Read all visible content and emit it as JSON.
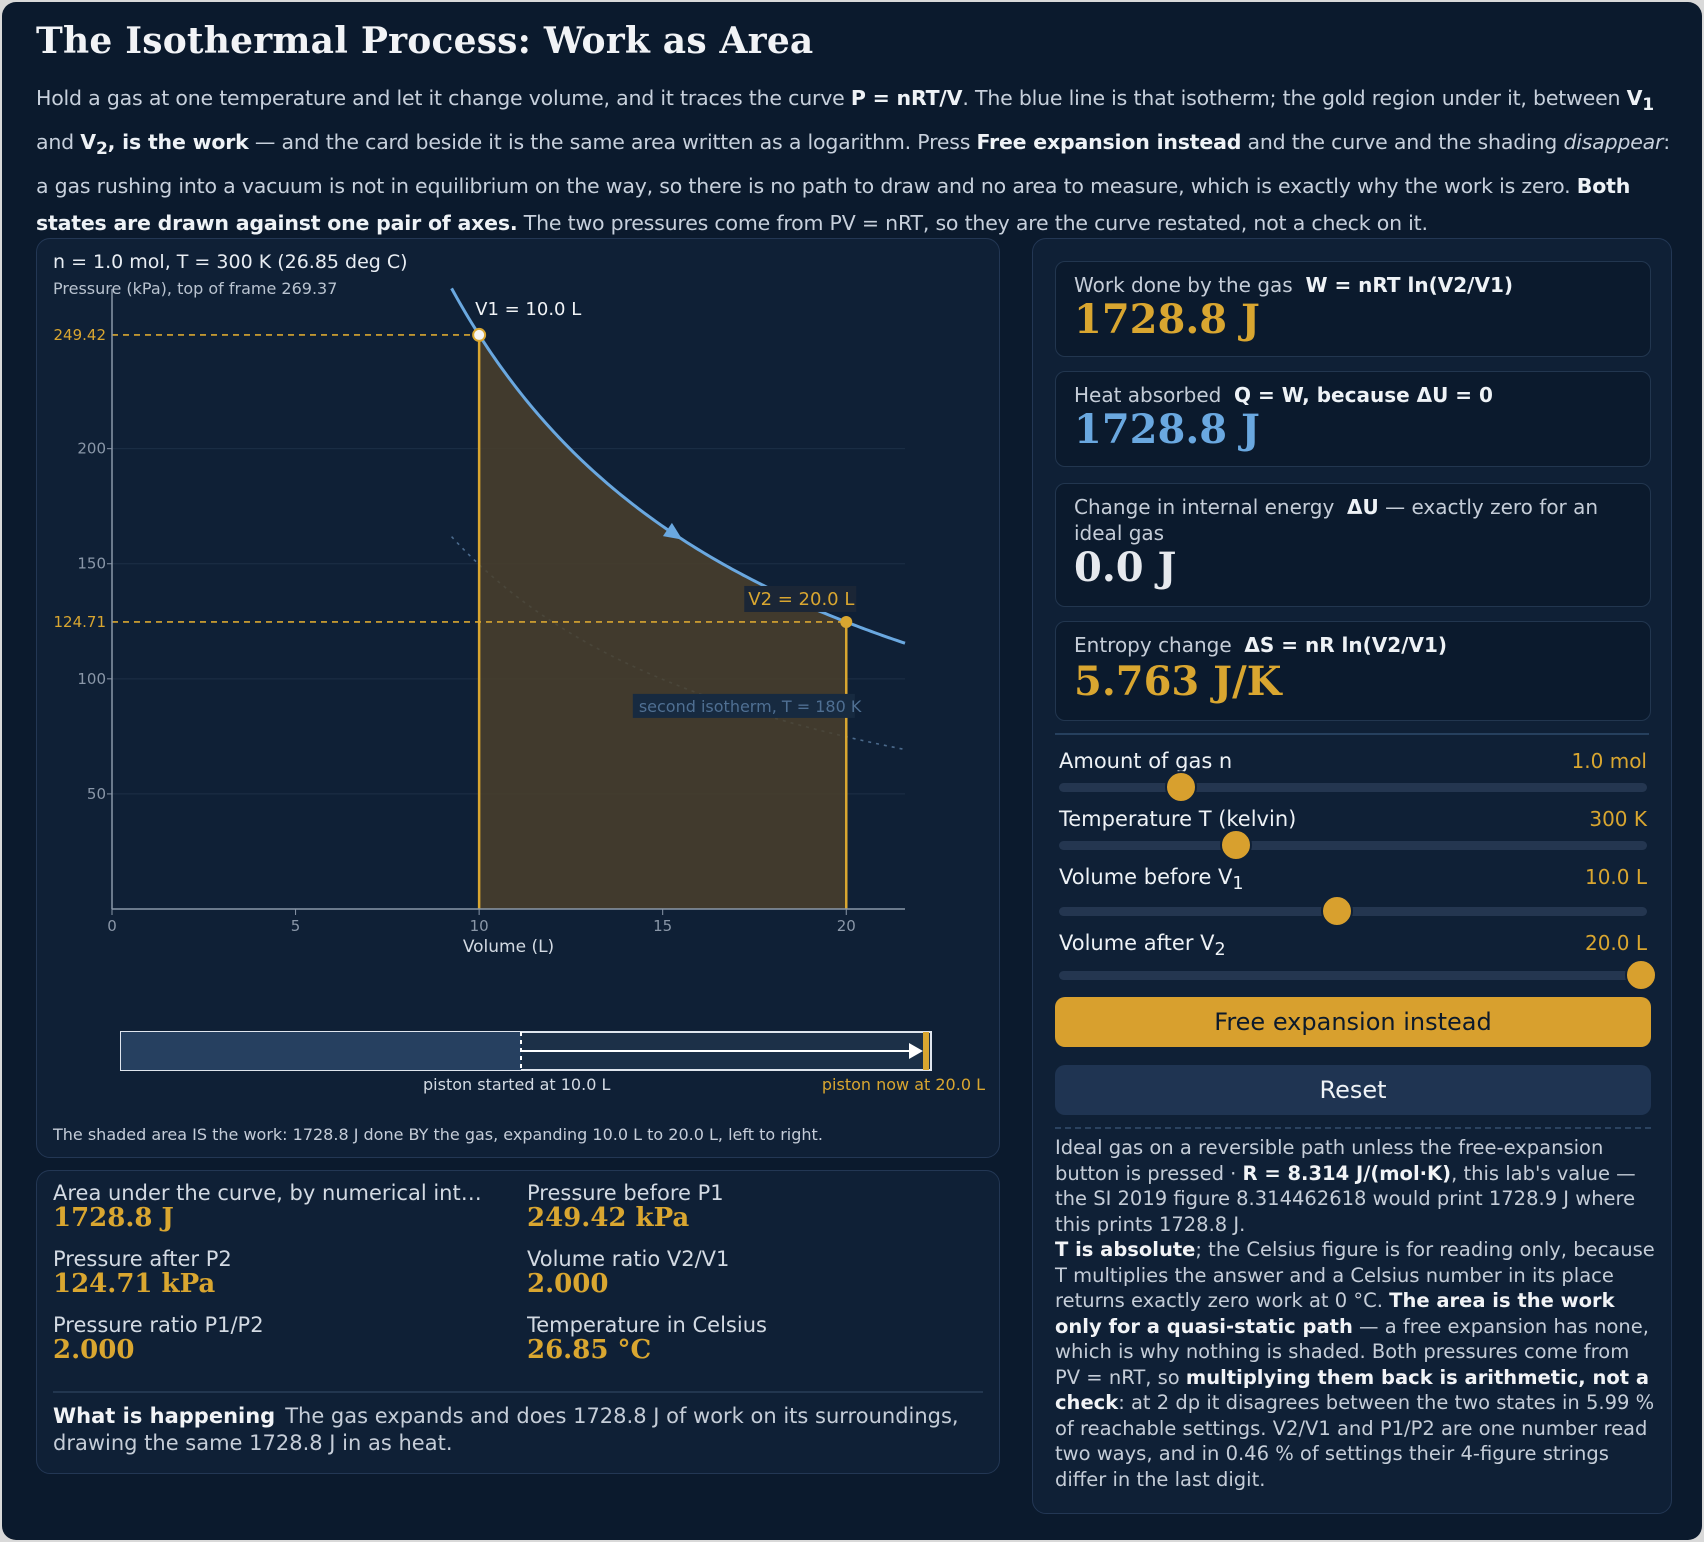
{
  "title": "The Isothermal Process: Work as Area",
  "intro": {
    "p1": "Hold a gas at one temperature and let it change volume, and it traces the curve ",
    "b1": "P = nRT/V",
    "p2": ". The blue line is that isotherm; the gold region under it, between ",
    "v1": "V",
    "v1sub": "1",
    "p3": " and ",
    "v2": "V",
    "v2sub": "2",
    "b2": ", is the work",
    "p4": " — and the card beside it is the same area written as a logarithm. Press ",
    "b3": "Free expansion instead",
    "p5": " and the curve and the shading ",
    "i1": "disappear",
    "p6": ": a gas rushing into a vacuum is not in equilibrium on the way, so there is no path to draw and no area to measure, which is exactly why the work is zero. ",
    "b4": "Both states are drawn against one pair of axes.",
    "p7": " The two pressures come from PV = nRT, so they are the curve restated, not a check on it."
  },
  "plot": {
    "header_line1": "n = 1.0 mol, T = 300 K (26.85 deg C)",
    "header_line2": "Pressure (kPa), top of frame 269.37",
    "xlabel": "Volume (L)",
    "x_ticks": [
      "0",
      "5",
      "10",
      "15",
      "20"
    ],
    "y_ticks": [
      "50",
      "100",
      "150",
      "200"
    ],
    "p1_label": "249.42",
    "p2_label": "124.71",
    "v1_label": "V1 = 10.0 L",
    "v2_label": "V2 = 20.0 L",
    "second_isotherm_label": "second isotherm, T = 180 K",
    "piston_start_label": "piston started at 10.0 L",
    "piston_now_label": "piston now at 20.0 L",
    "caption": "The shaded area IS the work: 1728.8 J done BY the gas, expanding 10.0 L to 20.0 L, left to right."
  },
  "chart_data": {
    "type": "line",
    "ylabel": "Pressure (kPa)",
    "xlabel": "Volume (L)",
    "xlim": [
      0,
      21.6
    ],
    "ylim": [
      0,
      269.37
    ],
    "series": [
      {
        "name": "isotherm",
        "T": 300,
        "n": 1.0,
        "function": "P = nRT/V",
        "v_range": [
          9.25,
          21.6
        ]
      },
      {
        "name": "second isotherm, T = 180 K",
        "T": 180,
        "n": 1.0,
        "function": "P = nRT/V",
        "v_range": [
          9.25,
          21.6
        ]
      }
    ],
    "points": [
      {
        "label": "V1 = 10.0 L",
        "x": 10.0,
        "y": 249.42
      },
      {
        "label": "V2 = 20.0 L",
        "x": 20.0,
        "y": 124.71
      }
    ],
    "shaded_region": {
      "x_from": 10.0,
      "x_to": 20.0,
      "meaning": "work"
    },
    "grid": true
  },
  "cards": [
    {
      "label": "Work done by the gas",
      "formula": "W = nRT ln(V2/V1)",
      "value": "1728.8 J",
      "color": "#d9a630"
    },
    {
      "label": "Heat absorbed",
      "formula": "Q = W, because ΔU = 0",
      "value": "1728.8 J",
      "color": "#6aa8e0"
    },
    {
      "label": "Change in internal energy",
      "formula": "ΔU",
      "tail": " — exactly zero for an ideal gas",
      "value": "0.0 J",
      "color": "#e6e9ee"
    },
    {
      "label": "Entropy change",
      "formula": "ΔS = nR ln(V2/V1)",
      "value": "5.763 J/K",
      "color": "#d9a630"
    }
  ],
  "sliders": [
    {
      "label": "Amount of gas n",
      "value": "1.0 mol",
      "fraction": 0.2
    },
    {
      "label": "Temperature T (kelvin)",
      "value": "300 K",
      "fraction": 0.3
    },
    {
      "label": "Volume before V",
      "sub": "1",
      "value": "10.0 L",
      "fraction": 0.47
    },
    {
      "label": "Volume after V",
      "sub": "2",
      "value": "20.0 L",
      "fraction": 0.97
    }
  ],
  "buttons": {
    "free": "Free expansion instead",
    "reset": "Reset"
  },
  "notes": {
    "a1": "Ideal gas on a reversible path unless the free-expansion button is pressed · ",
    "a2": "R = 8.314 J/(mol·K)",
    "a3": ", this lab's value — the SI 2019 figure 8.314462618 would print 1728.9 J where this prints 1728.8 J.",
    "b1": "T is absolute",
    "b2": "; the Celsius figure is for reading only, because T multiplies the answer and a Celsius number in its place returns exactly zero work at 0 °C. ",
    "b3": "The area is the work only for a quasi-static path",
    "b4": " — a free expansion has none, which is why nothing is shaded. Both pressures come from PV = nRT, so ",
    "b5": "multiplying them back is arithmetic, not a check",
    "b6": ": at 2 dp it disagrees between the two states in 5.99 % of reachable settings. V2/V1 and P1/P2 are one number read two ways, and in 0.46 % of settings their 4-figure strings differ in the last digit."
  },
  "stats": [
    {
      "label": "Area under the curve, by numerical integ…",
      "value": "1728.8 J"
    },
    {
      "label": "Pressure before P1",
      "value": "249.42 kPa"
    },
    {
      "label": "Pressure after P2",
      "value": "124.71 kPa"
    },
    {
      "label": "Volume ratio V2/V1",
      "value": "2.000"
    },
    {
      "label": "Pressure ratio P1/P2",
      "value": "2.000"
    },
    {
      "label": "Temperature in Celsius",
      "value": "26.85 °C"
    }
  ],
  "happening": {
    "label": "What is happening",
    "text": "The gas expands and does 1728.8 J of work on its surroundings, drawing the same 1728.8 J in as heat."
  },
  "colors": {
    "gold": "#d9a630",
    "blue": "#6aa8e0",
    "bg": "#0b1a2d",
    "panel": "#0f2036"
  }
}
